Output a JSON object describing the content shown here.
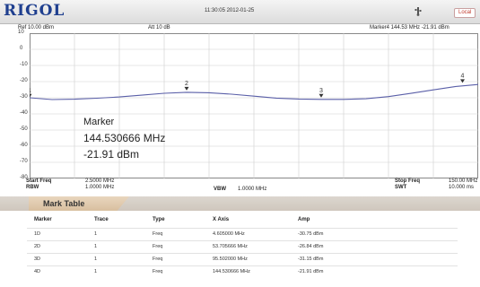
{
  "header": {
    "logo": "RIGOL",
    "datetime": "11:30:05 2012-01-25",
    "local_button": "Local"
  },
  "info": {
    "ref": "Ref  10.00 dBm",
    "att": "Att   10 dB",
    "marker4": "Marker4   144.53 MHz   -21.91 dBm"
  },
  "plot": {
    "y_ticks": [
      "10",
      "0",
      "-10",
      "-20",
      "-30",
      "-40",
      "-50",
      "-60",
      "-70",
      "-80"
    ],
    "y_min": -80,
    "y_max": 10,
    "trace_color": "#5a5fa8",
    "trace": [
      {
        "x": 0.0,
        "y": -30.0
      },
      {
        "x": 0.05,
        "y": -31.1
      },
      {
        "x": 0.1,
        "y": -30.9
      },
      {
        "x": 0.15,
        "y": -30.3
      },
      {
        "x": 0.2,
        "y": -29.5
      },
      {
        "x": 0.25,
        "y": -28.4
      },
      {
        "x": 0.3,
        "y": -27.2
      },
      {
        "x": 0.35,
        "y": -26.6
      },
      {
        "x": 0.4,
        "y": -26.9
      },
      {
        "x": 0.45,
        "y": -27.8
      },
      {
        "x": 0.5,
        "y": -29.0
      },
      {
        "x": 0.55,
        "y": -30.2
      },
      {
        "x": 0.6,
        "y": -30.8
      },
      {
        "x": 0.65,
        "y": -31.0
      },
      {
        "x": 0.7,
        "y": -31.0
      },
      {
        "x": 0.75,
        "y": -30.6
      },
      {
        "x": 0.8,
        "y": -29.3
      },
      {
        "x": 0.85,
        "y": -27.3
      },
      {
        "x": 0.9,
        "y": -25.1
      },
      {
        "x": 0.95,
        "y": -23.0
      },
      {
        "x": 1.0,
        "y": -21.8
      }
    ],
    "markers": [
      {
        "label": "1",
        "x": 0.0,
        "y": -31.0
      },
      {
        "label": "2",
        "x": 0.35,
        "y": -26.6
      },
      {
        "label": "3",
        "x": 0.65,
        "y": -31.0
      },
      {
        "label": "4",
        "x": 0.965,
        "y": -21.9
      }
    ]
  },
  "marker_popup": {
    "title": "Marker",
    "freq": "144.530666 MHz",
    "amp": "-21.91 dBm"
  },
  "bottom": {
    "start_label": "Start Freq",
    "start_value": "2.5000 MHz",
    "rbw_label": "RBW",
    "rbw_value": "1.0000 MHz",
    "vbw_label": "VBW",
    "vbw_value": "1.0000 MHz",
    "stop_label": "Stop Freq",
    "stop_value": "150.00 MHz",
    "swt_label": "SWT",
    "swt_value": "10.000 ms"
  },
  "mark_table": {
    "title": "Mark Table",
    "headers": [
      "Marker",
      "Trace",
      "Type",
      "X Axis",
      "Amp"
    ],
    "rows": [
      [
        "1D",
        "1",
        "Freq",
        "4.605000 MHz",
        "-30.75 dBm"
      ],
      [
        "2D",
        "1",
        "Freq",
        "53.705666 MHz",
        "-26.84 dBm"
      ],
      [
        "3D",
        "1",
        "Freq",
        "95.502000 MHz",
        "-31.15 dBm"
      ],
      [
        "4D",
        "1",
        "Freq",
        "144.530666 MHz",
        "-21.91 dBm"
      ]
    ]
  }
}
